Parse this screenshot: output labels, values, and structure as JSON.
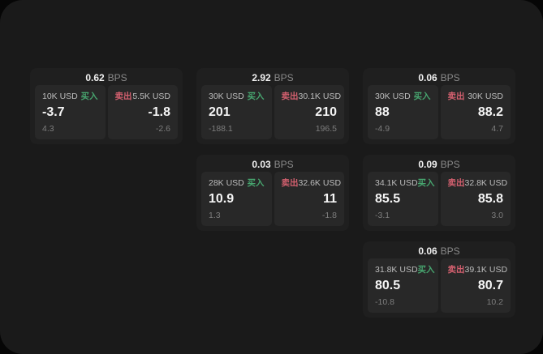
{
  "labels": {
    "bps_suffix": "BPS",
    "buy": "买入",
    "sell": "卖出"
  },
  "colors": {
    "buy": "#47a56f",
    "sell": "#d4606f"
  },
  "cards": [
    {
      "bps": "0.62",
      "grid": {
        "row": 1,
        "col": 1
      },
      "buy": {
        "amount": "10K USD",
        "value": "-3.7",
        "delta": "4.3"
      },
      "sell": {
        "amount": "5.5K USD",
        "value": "-1.8",
        "delta": "-2.6"
      }
    },
    {
      "bps": "2.92",
      "grid": {
        "row": 1,
        "col": 2
      },
      "buy": {
        "amount": "30K USD",
        "value": "201",
        "delta": "-188.1"
      },
      "sell": {
        "amount": "30.1K USD",
        "value": "210",
        "delta": "196.5"
      }
    },
    {
      "bps": "0.06",
      "grid": {
        "row": 1,
        "col": 3
      },
      "buy": {
        "amount": "30K USD",
        "value": "88",
        "delta": "-4.9"
      },
      "sell": {
        "amount": "30K USD",
        "value": "88.2",
        "delta": "4.7"
      }
    },
    {
      "bps": "0.03",
      "grid": {
        "row": 2,
        "col": 2
      },
      "buy": {
        "amount": "28K USD",
        "value": "10.9",
        "delta": "1.3"
      },
      "sell": {
        "amount": "32.6K USD",
        "value": "11",
        "delta": "-1.8"
      }
    },
    {
      "bps": "0.09",
      "grid": {
        "row": 2,
        "col": 3
      },
      "buy": {
        "amount": "34.1K USD",
        "value": "85.5",
        "delta": "-3.1"
      },
      "sell": {
        "amount": "32.8K USD",
        "value": "85.8",
        "delta": "3.0"
      }
    },
    {
      "bps": "0.06",
      "grid": {
        "row": 3,
        "col": 3
      },
      "buy": {
        "amount": "31.8K USD",
        "value": "80.5",
        "delta": "-10.8"
      },
      "sell": {
        "amount": "39.1K USD",
        "value": "80.7",
        "delta": "10.2"
      }
    }
  ]
}
